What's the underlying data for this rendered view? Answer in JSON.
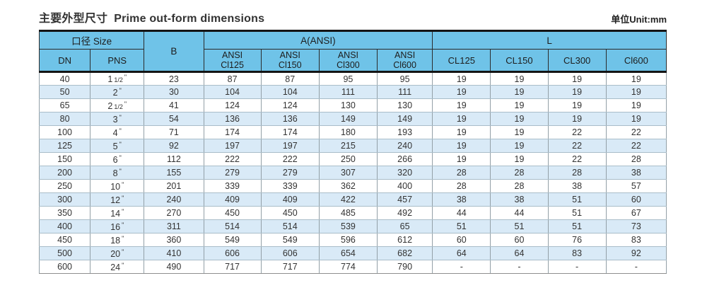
{
  "page": {
    "title_zh": "主要外型尺寸",
    "title_en": "Prime out-form dimensions",
    "unit_label": "单位Unit:mm"
  },
  "colors": {
    "header_bg": "#6fc3e8",
    "alt_row_bg": "#d9eaf7",
    "border_dark": "#141414",
    "grid_gray": "#93a0a7"
  },
  "table": {
    "size_group": "口径 Size",
    "col_dn": "DN",
    "col_pns": "PNS",
    "col_b": "B",
    "a_group": "A(ANSI)",
    "l_group": "L",
    "a_subcols": [
      [
        "ANSI",
        "Cl125"
      ],
      [
        "ANSI",
        "Cl150"
      ],
      [
        "ANSI",
        "Cl300"
      ],
      [
        "ANSI",
        "Cl600"
      ]
    ],
    "l_subcols": [
      "CL125",
      "CL150",
      "CL300",
      "Cl600"
    ],
    "inch_mark": "\"",
    "rows": [
      {
        "dn": "40",
        "pns_num": "1",
        "pns_frac": "1/2",
        "b": "23",
        "a": [
          "87",
          "87",
          "95",
          "95"
        ],
        "l": [
          "19",
          "19",
          "19",
          "19"
        ]
      },
      {
        "dn": "50",
        "pns_num": "2",
        "pns_frac": "",
        "b": "30",
        "a": [
          "104",
          "104",
          "111",
          "111"
        ],
        "l": [
          "19",
          "19",
          "19",
          "19"
        ]
      },
      {
        "dn": "65",
        "pns_num": "2",
        "pns_frac": "1/2",
        "b": "41",
        "a": [
          "124",
          "124",
          "130",
          "130"
        ],
        "l": [
          "19",
          "19",
          "19",
          "19"
        ]
      },
      {
        "dn": "80",
        "pns_num": "3",
        "pns_frac": "",
        "b": "54",
        "a": [
          "136",
          "136",
          "149",
          "149"
        ],
        "l": [
          "19",
          "19",
          "19",
          "19"
        ]
      },
      {
        "dn": "100",
        "pns_num": "4",
        "pns_frac": "",
        "b": "71",
        "a": [
          "174",
          "174",
          "180",
          "193"
        ],
        "l": [
          "19",
          "19",
          "22",
          "22"
        ]
      },
      {
        "dn": "125",
        "pns_num": "5",
        "pns_frac": "",
        "b": "92",
        "a": [
          "197",
          "197",
          "215",
          "240"
        ],
        "l": [
          "19",
          "19",
          "22",
          "22"
        ]
      },
      {
        "dn": "150",
        "pns_num": "6",
        "pns_frac": "",
        "b": "112",
        "a": [
          "222",
          "222",
          "250",
          "266"
        ],
        "l": [
          "19",
          "19",
          "22",
          "28"
        ]
      },
      {
        "dn": "200",
        "pns_num": "8",
        "pns_frac": "",
        "b": "155",
        "a": [
          "279",
          "279",
          "307",
          "320"
        ],
        "l": [
          "28",
          "28",
          "28",
          "38"
        ]
      },
      {
        "dn": "250",
        "pns_num": "10",
        "pns_frac": "",
        "b": "201",
        "a": [
          "339",
          "339",
          "362",
          "400"
        ],
        "l": [
          "28",
          "28",
          "38",
          "57"
        ]
      },
      {
        "dn": "300",
        "pns_num": "12",
        "pns_frac": "",
        "b": "240",
        "a": [
          "409",
          "409",
          "422",
          "457"
        ],
        "l": [
          "38",
          "38",
          "51",
          "60"
        ]
      },
      {
        "dn": "350",
        "pns_num": "14",
        "pns_frac": "",
        "b": "270",
        "a": [
          "450",
          "450",
          "485",
          "492"
        ],
        "l": [
          "44",
          "44",
          "51",
          "67"
        ]
      },
      {
        "dn": "400",
        "pns_num": "16",
        "pns_frac": "",
        "b": "311",
        "a": [
          "514",
          "514",
          "539",
          "65"
        ],
        "l": [
          "51",
          "51",
          "51",
          "73"
        ]
      },
      {
        "dn": "450",
        "pns_num": "18",
        "pns_frac": "",
        "b": "360",
        "a": [
          "549",
          "549",
          "596",
          "612"
        ],
        "l": [
          "60",
          "60",
          "76",
          "83"
        ]
      },
      {
        "dn": "500",
        "pns_num": "20",
        "pns_frac": "",
        "b": "410",
        "a": [
          "606",
          "606",
          "654",
          "682"
        ],
        "l": [
          "64",
          "64",
          "83",
          "92"
        ]
      },
      {
        "dn": "600",
        "pns_num": "24",
        "pns_frac": "",
        "b": "490",
        "a": [
          "717",
          "717",
          "774",
          "790"
        ],
        "l": [
          "-",
          "-",
          "-",
          "-"
        ]
      }
    ]
  }
}
